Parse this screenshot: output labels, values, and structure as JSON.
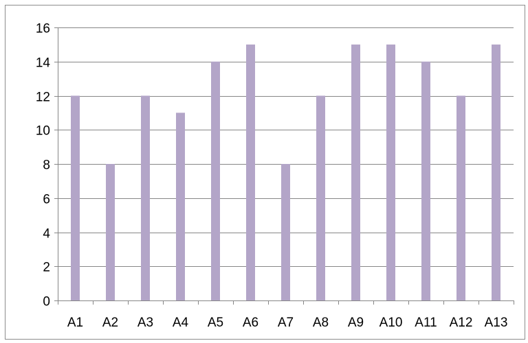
{
  "chart_data": {
    "type": "bar",
    "categories": [
      "A1",
      "A2",
      "A3",
      "A4",
      "A5",
      "A6",
      "A7",
      "A8",
      "A9",
      "A10",
      "A11",
      "A12",
      "A13"
    ],
    "values": [
      12,
      8,
      12,
      11,
      14,
      15,
      8,
      12,
      15,
      15,
      14,
      12,
      15
    ],
    "title": "",
    "xlabel": "",
    "ylabel": "",
    "ylim": [
      0,
      16
    ],
    "yticks": [
      0,
      2,
      4,
      6,
      8,
      10,
      12,
      14,
      16
    ],
    "grid": true,
    "legend": "none",
    "bar_color": "#b3a5c8",
    "grid_color": "#868686",
    "axis_color": "#868686"
  }
}
